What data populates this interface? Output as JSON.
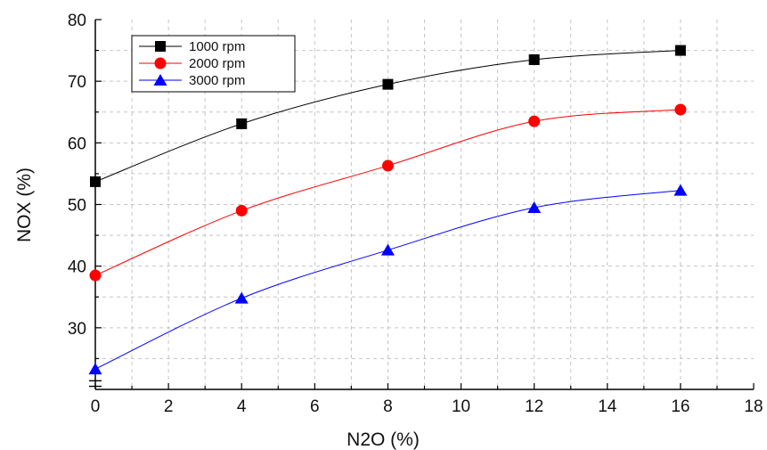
{
  "chart_data": {
    "type": "line",
    "title": "",
    "xlabel": "N2O (%)",
    "ylabel": "NOX (%)",
    "xlim": [
      0,
      18
    ],
    "ylim": [
      20,
      80
    ],
    "y_axis_break": true,
    "x_ticks": [
      0,
      2,
      4,
      6,
      8,
      10,
      12,
      14,
      16,
      18
    ],
    "y_ticks": [
      30,
      40,
      50,
      60,
      70,
      80
    ],
    "grid": "dashed",
    "legend_position": "top-left",
    "x": [
      0,
      4,
      8,
      12,
      16
    ],
    "series": [
      {
        "name": "1000 rpm",
        "marker": "square",
        "color": "#000000",
        "values": [
          53.7,
          63.1,
          69.5,
          73.5,
          75.0
        ]
      },
      {
        "name": "2000 rpm",
        "marker": "circle",
        "color": "#ff0000",
        "values": [
          38.5,
          49.0,
          56.3,
          63.5,
          65.4
        ]
      },
      {
        "name": "3000 rpm",
        "marker": "triangle",
        "color": "#0000ff",
        "values": [
          23.3,
          34.8,
          42.6,
          49.5,
          52.3
        ]
      }
    ]
  }
}
